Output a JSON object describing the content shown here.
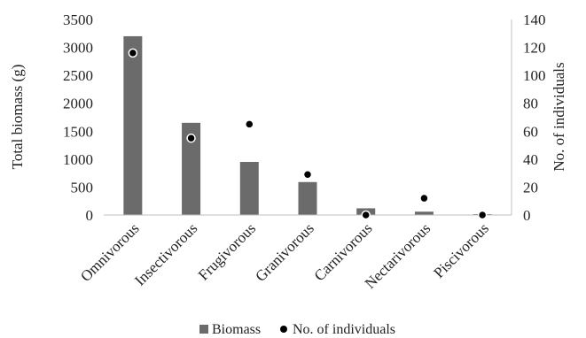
{
  "chart_data": {
    "type": "bar",
    "categories": [
      "Omnivorous",
      "Insectivorous",
      "Frugivorous",
      "Granivorous",
      "Carnivorous",
      "Nectarivorous",
      "Piscivorous"
    ],
    "series": [
      {
        "name": "Biomass",
        "type": "bar",
        "axis": "left",
        "color": "#6b6b6b",
        "values": [
          3200,
          1650,
          950,
          590,
          120,
          60,
          15
        ]
      },
      {
        "name": "No. of individuals",
        "type": "scatter",
        "axis": "right",
        "color": "#000000",
        "values": [
          116,
          55,
          65,
          29,
          0,
          12,
          0
        ]
      }
    ],
    "ylabel": "Total biomass (g)",
    "y2label": "No. of individuals",
    "ylim": [
      0,
      3500
    ],
    "y2lim": [
      0,
      140
    ],
    "yticks": [
      0,
      500,
      1000,
      1500,
      2000,
      2500,
      3000,
      3500
    ],
    "y2ticks": [
      0,
      20,
      40,
      60,
      80,
      100,
      120,
      140
    ],
    "grid": false,
    "legend_position": "bottom"
  }
}
